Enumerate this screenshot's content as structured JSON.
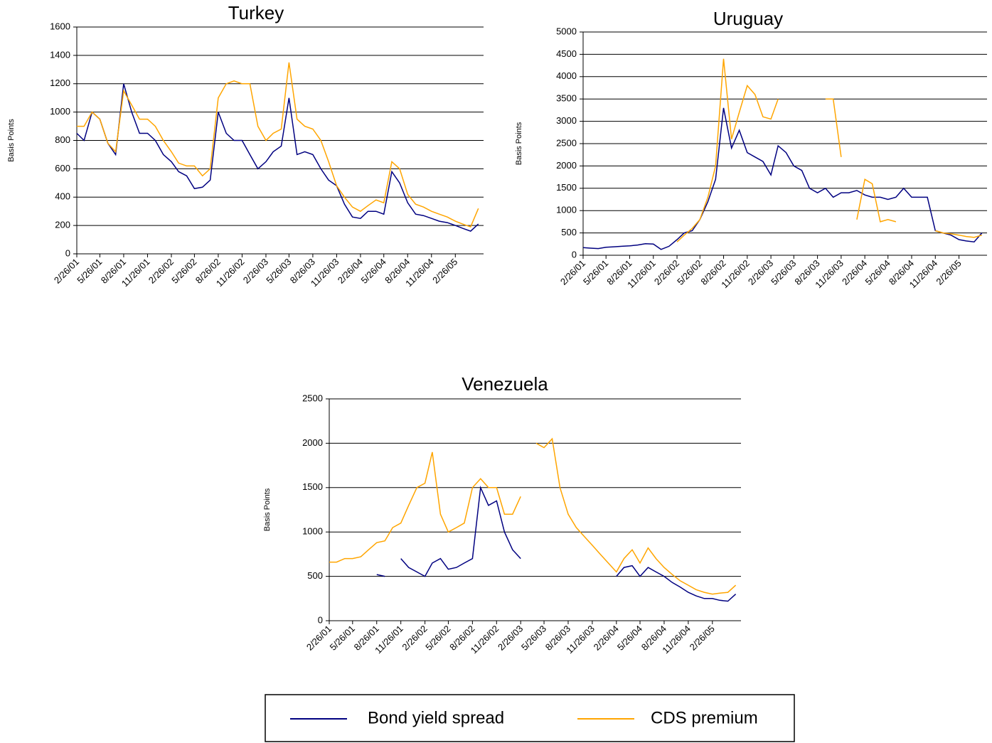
{
  "chart_data": [
    {
      "type": "line",
      "title": "Turkey",
      "ylabel": "Basis Points",
      "x": [
        "2/26/01",
        "3/26/01",
        "4/26/01",
        "5/26/01",
        "6/26/01",
        "7/26/01",
        "8/26/01",
        "9/26/01",
        "10/26/01",
        "11/26/01",
        "12/26/01",
        "1/26/02",
        "2/26/02",
        "3/26/02",
        "4/26/02",
        "5/26/02",
        "6/26/02",
        "7/26/02",
        "8/26/02",
        "9/26/02",
        "10/26/02",
        "11/26/02",
        "12/26/02",
        "1/26/03",
        "2/26/03",
        "3/26/03",
        "4/26/03",
        "5/26/03",
        "6/26/03",
        "7/26/03",
        "8/26/03",
        "9/26/03",
        "10/26/03",
        "11/26/03",
        "12/26/03",
        "1/26/04",
        "2/26/04",
        "3/26/04",
        "4/26/04",
        "5/26/04",
        "6/26/04",
        "7/26/04",
        "8/26/04",
        "9/26/04",
        "10/26/04",
        "11/26/04",
        "12/26/04",
        "1/26/05",
        "2/26/05",
        "3/26/05",
        "4/26/05",
        "5/26/05"
      ],
      "xlim": [
        "2/26/01",
        "6/15/05"
      ],
      "xticks": [
        "2/26/01",
        "5/26/01",
        "8/26/01",
        "11/26/01",
        "2/26/02",
        "5/26/02",
        "8/26/02",
        "11/26/02",
        "2/26/03",
        "5/26/03",
        "8/26/03",
        "11/26/03",
        "2/26/04",
        "5/26/04",
        "8/26/04",
        "11/26/04",
        "2/26/05"
      ],
      "ylim": [
        0,
        1600
      ],
      "yticks": [
        0,
        200,
        400,
        600,
        800,
        1000,
        1200,
        1400,
        1600
      ],
      "grid": true,
      "series": [
        {
          "color": "#000080",
          "values": [
            850,
            800,
            1000,
            950,
            780,
            700,
            1200,
            1000,
            850,
            850,
            800,
            700,
            650,
            580,
            550,
            460,
            470,
            520,
            1000,
            850,
            800,
            800,
            700,
            600,
            650,
            720,
            760,
            1100,
            700,
            720,
            700,
            600,
            520,
            480,
            350,
            260,
            250,
            300,
            300,
            280,
            580,
            500,
            360,
            280,
            270,
            250,
            230,
            220,
            200,
            180,
            160,
            210
          ]
        },
        {
          "color": "#ffa500",
          "values": [
            900,
            900,
            1000,
            950,
            780,
            720,
            1150,
            1050,
            950,
            950,
            900,
            800,
            720,
            640,
            620,
            620,
            550,
            600,
            1100,
            1200,
            1220,
            1200,
            1200,
            900,
            800,
            850,
            880,
            1350,
            950,
            900,
            880,
            800,
            650,
            480,
            400,
            330,
            300,
            340,
            380,
            360,
            650,
            600,
            420,
            350,
            330,
            300,
            280,
            260,
            230,
            210,
            190,
            320
          ]
        }
      ]
    },
    {
      "type": "line",
      "title": "Uruguay",
      "ylabel": "Basis Points",
      "x": [
        "2/26/01",
        "3/26/01",
        "4/26/01",
        "5/26/01",
        "6/26/01",
        "7/26/01",
        "8/26/01",
        "9/26/01",
        "10/26/01",
        "11/26/01",
        "12/26/01",
        "1/26/02",
        "2/26/02",
        "3/26/02",
        "4/26/02",
        "5/26/02",
        "6/26/02",
        "7/26/02",
        "8/26/02",
        "9/26/02",
        "10/26/02",
        "11/26/02",
        "12/26/02",
        "1/26/03",
        "2/26/03",
        "3/26/03",
        "4/26/03",
        "5/26/03",
        "6/26/03",
        "7/26/03",
        "8/26/03",
        "9/26/03",
        "10/26/03",
        "11/26/03",
        "12/26/03",
        "1/26/04",
        "2/26/04",
        "3/26/04",
        "4/26/04",
        "5/26/04",
        "6/26/04",
        "7/26/04",
        "8/26/04",
        "9/26/04",
        "10/26/04",
        "11/26/04",
        "12/26/04",
        "1/26/05",
        "2/26/05",
        "3/26/05",
        "4/26/05",
        "5/26/05"
      ],
      "xlim": [
        "2/26/01",
        "6/15/05"
      ],
      "xticks": [
        "2/26/01",
        "5/26/01",
        "8/26/01",
        "11/26/01",
        "2/26/02",
        "5/26/02",
        "8/26/02",
        "11/26/02",
        "2/26/03",
        "5/26/03",
        "8/26/03",
        "11/26/03",
        "2/26/04",
        "5/26/04",
        "8/26/04",
        "11/26/04",
        "2/26/05"
      ],
      "ylim": [
        0,
        5000
      ],
      "yticks": [
        0,
        500,
        1000,
        1500,
        2000,
        2500,
        3000,
        3500,
        4000,
        4500,
        5000
      ],
      "grid": true,
      "series": [
        {
          "color": "#000080",
          "values": [
            170,
            160,
            150,
            180,
            190,
            200,
            210,
            230,
            260,
            250,
            130,
            200,
            350,
            500,
            550,
            800,
            1200,
            1700,
            3300,
            2400,
            2800,
            2300,
            2200,
            2100,
            1800,
            2450,
            2300,
            2000,
            1900,
            1500,
            1400,
            1500,
            1300,
            1400,
            1400,
            1450,
            1350,
            1300,
            1300,
            1250,
            1300,
            1500,
            1300,
            1300,
            1300,
            550,
            500,
            450,
            350,
            320,
            300,
            500
          ]
        },
        {
          "color": "#ffa500",
          "values": [
            null,
            null,
            null,
            null,
            null,
            null,
            null,
            null,
            null,
            null,
            null,
            null,
            300,
            450,
            600,
            800,
            1300,
            2000,
            4400,
            2600,
            3200,
            3800,
            3600,
            3100,
            3050,
            3500,
            null,
            null,
            null,
            null,
            null,
            3500,
            3500,
            2200,
            null,
            800,
            1700,
            1600,
            750,
            800,
            750,
            null,
            null,
            null,
            null,
            550,
            500,
            480,
            450,
            420,
            400,
            450
          ]
        }
      ]
    },
    {
      "type": "line",
      "title": "Venezuela",
      "ylabel": "Basis Points",
      "x": [
        "2/26/01",
        "3/26/01",
        "4/26/01",
        "5/26/01",
        "6/26/01",
        "7/26/01",
        "8/26/01",
        "9/26/01",
        "10/26/01",
        "11/26/01",
        "12/26/01",
        "1/26/02",
        "2/26/02",
        "3/26/02",
        "4/26/02",
        "5/26/02",
        "6/26/02",
        "7/26/02",
        "8/26/02",
        "9/26/02",
        "10/26/02",
        "11/26/02",
        "12/26/02",
        "1/26/03",
        "2/26/03",
        "3/26/03",
        "4/26/03",
        "5/26/03",
        "6/26/03",
        "7/26/03",
        "8/26/03",
        "9/26/03",
        "10/26/03",
        "11/26/03",
        "12/26/03",
        "1/26/04",
        "2/26/04",
        "3/26/04",
        "4/26/04",
        "5/26/04",
        "6/26/04",
        "7/26/04",
        "8/26/04",
        "9/26/04",
        "10/26/04",
        "11/26/04",
        "12/26/04",
        "1/26/05",
        "2/26/05",
        "3/26/05",
        "4/26/05",
        "5/26/05"
      ],
      "xlim": [
        "2/26/01",
        "6/15/05"
      ],
      "xticks": [
        "2/26/01",
        "5/26/01",
        "8/26/01",
        "11/26/01",
        "2/26/02",
        "5/26/02",
        "8/26/02",
        "11/26/02",
        "2/26/03",
        "5/26/03",
        "8/26/03",
        "11/26/03",
        "2/26/04",
        "5/26/04",
        "8/26/04",
        "11/26/04",
        "2/26/05"
      ],
      "ylim": [
        0,
        2500
      ],
      "yticks": [
        0,
        500,
        1000,
        1500,
        2000,
        2500
      ],
      "grid": true,
      "series": [
        {
          "color": "#000080",
          "values": [
            null,
            null,
            null,
            null,
            null,
            null,
            520,
            500,
            null,
            700,
            600,
            550,
            500,
            650,
            700,
            580,
            600,
            650,
            700,
            1500,
            1300,
            1350,
            1000,
            800,
            700,
            null,
            null,
            null,
            null,
            null,
            null,
            null,
            null,
            null,
            null,
            null,
            500,
            600,
            620,
            500,
            600,
            550,
            500,
            430,
            380,
            320,
            280,
            250,
            250,
            230,
            220,
            300
          ]
        },
        {
          "color": "#ffa500",
          "values": [
            660,
            660,
            700,
            700,
            720,
            800,
            880,
            900,
            1050,
            1100,
            1300,
            1500,
            1550,
            1900,
            1200,
            1000,
            1050,
            1100,
            1500,
            1600,
            1500,
            1500,
            1200,
            1200,
            1400,
            null,
            2000,
            1950,
            2050,
            1500,
            1200,
            1050,
            950,
            850,
            750,
            650,
            550,
            700,
            800,
            650,
            820,
            700,
            600,
            520,
            450,
            400,
            350,
            320,
            300,
            310,
            320,
            400
          ]
        }
      ]
    }
  ],
  "legend": {
    "items": [
      {
        "name": "Bond yield spread",
        "color": "#000080"
      },
      {
        "name": "CDS premium",
        "color": "#ffa500"
      }
    ]
  }
}
